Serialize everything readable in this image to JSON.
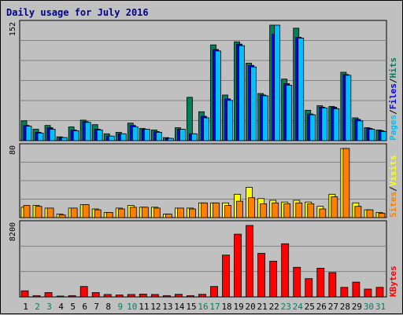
{
  "chart_data": {
    "type": "bar",
    "title": "Daily usage for July 2016",
    "categories": [
      "1",
      "2",
      "3",
      "4",
      "5",
      "6",
      "7",
      "8",
      "9",
      "10",
      "11",
      "12",
      "13",
      "14",
      "15",
      "16",
      "17",
      "18",
      "19",
      "20",
      "21",
      "22",
      "23",
      "24",
      "25",
      "26",
      "27",
      "28",
      "29",
      "30",
      "31"
    ],
    "weekend_days": [
      "2",
      "3",
      "9",
      "10",
      "16",
      "17",
      "23",
      "24",
      "30",
      "31"
    ],
    "colors": {
      "hits": "#00805c",
      "files": "#0000ff",
      "pages": "#00c0ff",
      "visits": "#ffff00",
      "sites": "#ff8000",
      "kbytes": "#ff0000",
      "weekday_label": "#000000",
      "weekend_label": "#00805c"
    },
    "panels": [
      {
        "id": "hits",
        "ymax": 152,
        "ymax_label": "152",
        "legend": [
          "Pages",
          "/",
          "Files",
          "/",
          "Hits"
        ],
        "legend_colors": [
          "#00c0ff",
          "#000000",
          "#0000ff",
          "#000000",
          "#00805c"
        ],
        "series": [
          {
            "name": "Hits",
            "key": "hits",
            "values": [
              26,
              15,
              20,
              5,
              18,
              27,
              21,
              9,
              11,
              23,
              16,
              14,
              4,
              17,
              57,
              38,
              126,
              60,
              130,
              102,
              62,
              152,
              81,
              148,
              40,
              46,
              45,
              90,
              30,
              17,
              14
            ]
          },
          {
            "name": "Files",
            "key": "files",
            "values": [
              20,
              11,
              17,
              4,
              14,
              25,
              15,
              6,
              9,
              20,
              15,
              12,
              3,
              15,
              9,
              32,
              120,
              55,
              127,
              99,
              60,
              140,
              75,
              136,
              35,
              44,
              44,
              87,
              28,
              16,
              13
            ]
          },
          {
            "name": "Pages",
            "key": "pages",
            "values": [
              19,
              10,
              15,
              4,
              13,
              24,
              14,
              6,
              9,
              18,
              15,
              11,
              3,
              15,
              9,
              30,
              118,
              53,
              125,
              97,
              59,
              152,
              73,
              135,
              34,
              43,
              42,
              86,
              26,
              15,
              12
            ]
          }
        ]
      },
      {
        "id": "sites",
        "ymax": 80,
        "ymax_label": "80",
        "legend": [
          "Sites",
          "/",
          "Visits"
        ],
        "legend_colors": [
          "#ff8000",
          "#000000",
          "#ffff00"
        ],
        "series": [
          {
            "name": "Visits",
            "key": "visits",
            "values": [
              12,
              14,
              11,
              4,
              11,
              15,
              10,
              6,
              11,
              14,
              12,
              12,
              4,
              11,
              11,
              17,
              17,
              17,
              27,
              35,
              22,
              20,
              18,
              20,
              18,
              13,
              27,
              80,
              17,
              9,
              6
            ]
          },
          {
            "name": "Sites",
            "key": "sites",
            "values": [
              14,
              13,
              11,
              3,
              11,
              15,
              9,
              6,
              10,
              12,
              12,
              11,
              4,
              11,
              10,
              17,
              17,
              14,
              19,
              23,
              16,
              17,
              16,
              17,
              16,
              10,
              24,
              80,
              13,
              9,
              5
            ]
          }
        ]
      },
      {
        "id": "kbytes",
        "ymax": 8200,
        "ymax_label": "8200",
        "legend": [
          "KBytes"
        ],
        "legend_colors": [
          "#ff0000"
        ],
        "series": [
          {
            "name": "KBytes",
            "key": "kbytes",
            "values": [
              700,
              150,
              500,
              100,
              150,
              1200,
              500,
              280,
              220,
              280,
              320,
              280,
              150,
              300,
              150,
              300,
              1200,
              4800,
              7200,
              8200,
              5000,
              4100,
              6100,
              3400,
              2100,
              3300,
              2800,
              1100,
              1700,
              900,
              1100
            ]
          }
        ]
      }
    ]
  }
}
